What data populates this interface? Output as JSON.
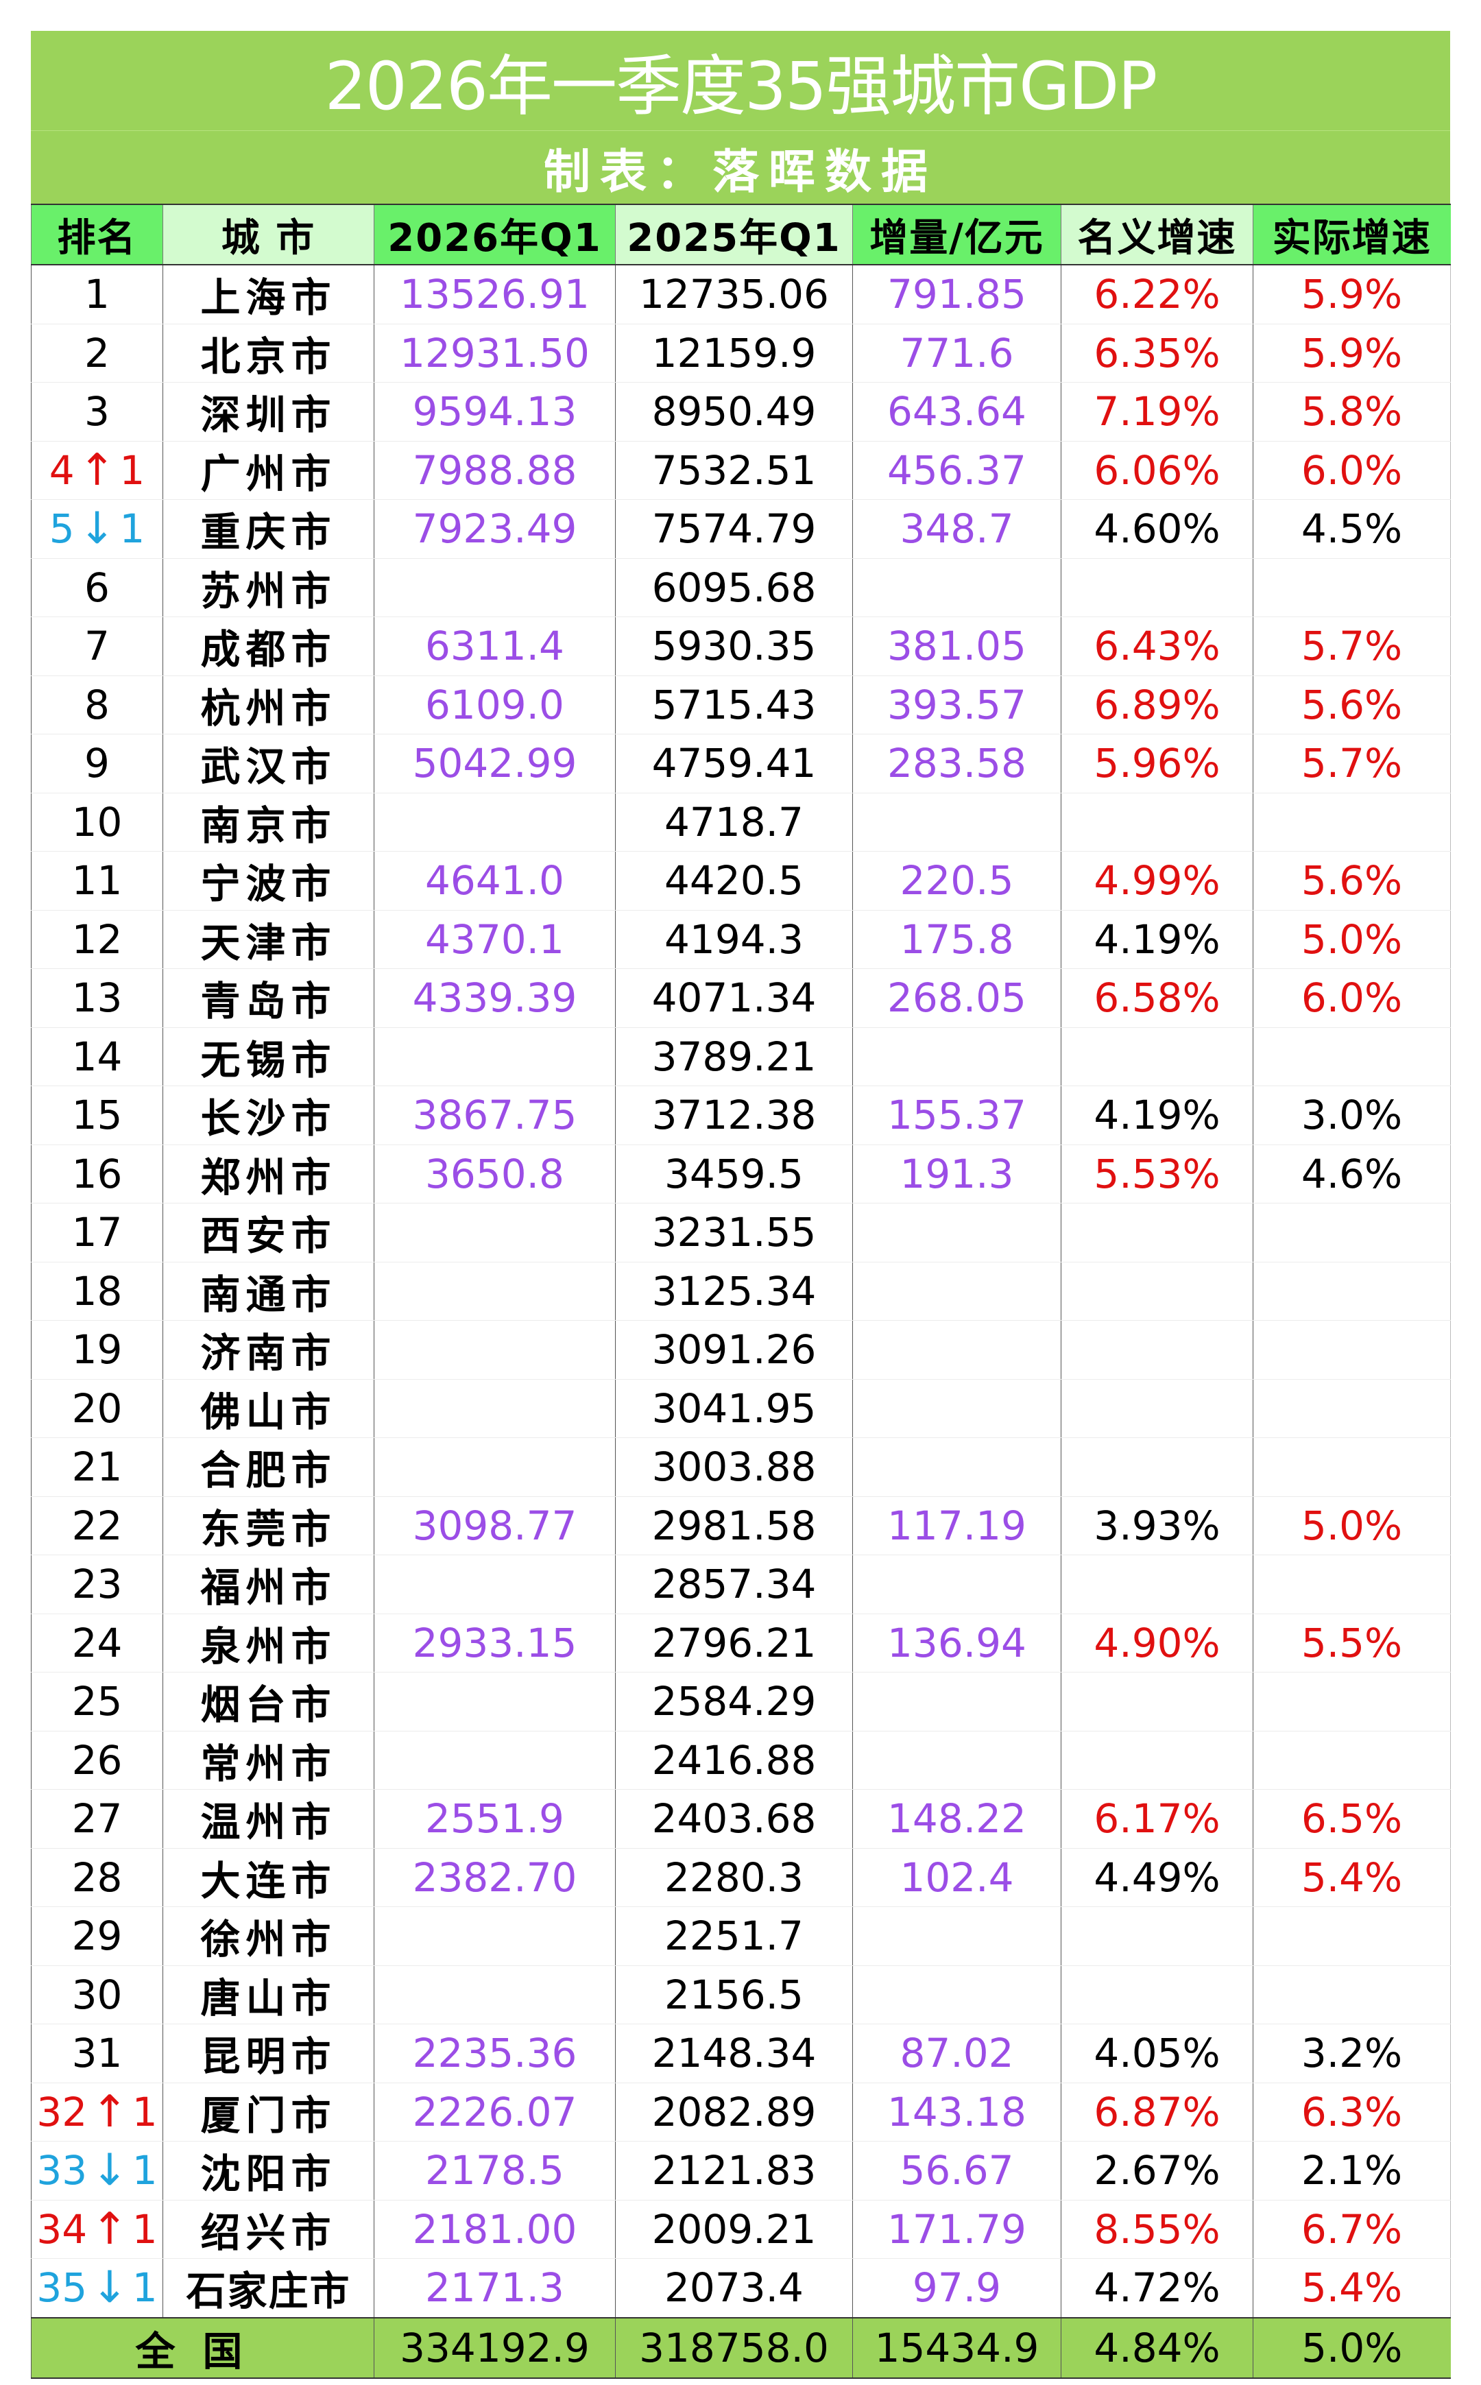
{
  "title": "2026年一季度35强城市GDP",
  "subtitle": "制表：落晖数据",
  "colors": {
    "band_green": "#9bd35a",
    "header_dark_green": "#69f06a",
    "header_light_green": "#d3fbcf",
    "value_purple": "#9b4de6",
    "growth_red": "#e01010",
    "rank_up_red": "#e01010",
    "rank_down_blue": "#1fa3dd"
  },
  "columns": [
    "排名",
    "城 市",
    "2026年Q1",
    "2025年Q1",
    "增量/亿元",
    "名义增速",
    "实际增速"
  ],
  "rows": [
    {
      "rank": "1",
      "change": "",
      "change_dir": "",
      "city": "上海市",
      "q1_2026": "13526.91",
      "q1_2025": "12735.06",
      "increase": "791.85",
      "nominal": "6.22%",
      "nominal_hl": true,
      "real": "5.9%",
      "real_hl": true
    },
    {
      "rank": "2",
      "change": "",
      "change_dir": "",
      "city": "北京市",
      "q1_2026": "12931.50",
      "q1_2025": "12159.9",
      "increase": "771.6",
      "nominal": "6.35%",
      "nominal_hl": true,
      "real": "5.9%",
      "real_hl": true
    },
    {
      "rank": "3",
      "change": "",
      "change_dir": "",
      "city": "深圳市",
      "q1_2026": "9594.13",
      "q1_2025": "8950.49",
      "increase": "643.64",
      "nominal": "7.19%",
      "nominal_hl": true,
      "real": "5.8%",
      "real_hl": true
    },
    {
      "rank": "4",
      "change": "1",
      "change_dir": "up",
      "city": "广州市",
      "q1_2026": "7988.88",
      "q1_2025": "7532.51",
      "increase": "456.37",
      "nominal": "6.06%",
      "nominal_hl": true,
      "real": "6.0%",
      "real_hl": true
    },
    {
      "rank": "5",
      "change": "1",
      "change_dir": "down",
      "city": "重庆市",
      "q1_2026": "7923.49",
      "q1_2025": "7574.79",
      "increase": "348.7",
      "nominal": "4.60%",
      "nominal_hl": false,
      "real": "4.5%",
      "real_hl": false
    },
    {
      "rank": "6",
      "change": "",
      "change_dir": "",
      "city": "苏州市",
      "q1_2026": "",
      "q1_2025": "6095.68",
      "increase": "",
      "nominal": "",
      "nominal_hl": false,
      "real": "",
      "real_hl": false
    },
    {
      "rank": "7",
      "change": "",
      "change_dir": "",
      "city": "成都市",
      "q1_2026": "6311.4",
      "q1_2025": "5930.35",
      "increase": "381.05",
      "nominal": "6.43%",
      "nominal_hl": true,
      "real": "5.7%",
      "real_hl": true
    },
    {
      "rank": "8",
      "change": "",
      "change_dir": "",
      "city": "杭州市",
      "q1_2026": "6109.0",
      "q1_2025": "5715.43",
      "increase": "393.57",
      "nominal": "6.89%",
      "nominal_hl": true,
      "real": "5.6%",
      "real_hl": true
    },
    {
      "rank": "9",
      "change": "",
      "change_dir": "",
      "city": "武汉市",
      "q1_2026": "5042.99",
      "q1_2025": "4759.41",
      "increase": "283.58",
      "nominal": "5.96%",
      "nominal_hl": true,
      "real": "5.7%",
      "real_hl": true
    },
    {
      "rank": "10",
      "change": "",
      "change_dir": "",
      "city": "南京市",
      "q1_2026": "",
      "q1_2025": "4718.7",
      "increase": "",
      "nominal": "",
      "nominal_hl": false,
      "real": "",
      "real_hl": false
    },
    {
      "rank": "11",
      "change": "",
      "change_dir": "",
      "city": "宁波市",
      "q1_2026": "4641.0",
      "q1_2025": "4420.5",
      "increase": "220.5",
      "nominal": "4.99%",
      "nominal_hl": true,
      "real": "5.6%",
      "real_hl": true
    },
    {
      "rank": "12",
      "change": "",
      "change_dir": "",
      "city": "天津市",
      "q1_2026": "4370.1",
      "q1_2025": "4194.3",
      "increase": "175.8",
      "nominal": "4.19%",
      "nominal_hl": false,
      "real": "5.0%",
      "real_hl": true
    },
    {
      "rank": "13",
      "change": "",
      "change_dir": "",
      "city": "青岛市",
      "q1_2026": "4339.39",
      "q1_2025": "4071.34",
      "increase": "268.05",
      "nominal": "6.58%",
      "nominal_hl": true,
      "real": "6.0%",
      "real_hl": true
    },
    {
      "rank": "14",
      "change": "",
      "change_dir": "",
      "city": "无锡市",
      "q1_2026": "",
      "q1_2025": "3789.21",
      "increase": "",
      "nominal": "",
      "nominal_hl": false,
      "real": "",
      "real_hl": false
    },
    {
      "rank": "15",
      "change": "",
      "change_dir": "",
      "city": "长沙市",
      "q1_2026": "3867.75",
      "q1_2025": "3712.38",
      "increase": "155.37",
      "nominal": "4.19%",
      "nominal_hl": false,
      "real": "3.0%",
      "real_hl": false
    },
    {
      "rank": "16",
      "change": "",
      "change_dir": "",
      "city": "郑州市",
      "q1_2026": "3650.8",
      "q1_2025": "3459.5",
      "increase": "191.3",
      "nominal": "5.53%",
      "nominal_hl": true,
      "real": "4.6%",
      "real_hl": false
    },
    {
      "rank": "17",
      "change": "",
      "change_dir": "",
      "city": "西安市",
      "q1_2026": "",
      "q1_2025": "3231.55",
      "increase": "",
      "nominal": "",
      "nominal_hl": false,
      "real": "",
      "real_hl": false
    },
    {
      "rank": "18",
      "change": "",
      "change_dir": "",
      "city": "南通市",
      "q1_2026": "",
      "q1_2025": "3125.34",
      "increase": "",
      "nominal": "",
      "nominal_hl": false,
      "real": "",
      "real_hl": false
    },
    {
      "rank": "19",
      "change": "",
      "change_dir": "",
      "city": "济南市",
      "q1_2026": "",
      "q1_2025": "3091.26",
      "increase": "",
      "nominal": "",
      "nominal_hl": false,
      "real": "",
      "real_hl": false
    },
    {
      "rank": "20",
      "change": "",
      "change_dir": "",
      "city": "佛山市",
      "q1_2026": "",
      "q1_2025": "3041.95",
      "increase": "",
      "nominal": "",
      "nominal_hl": false,
      "real": "",
      "real_hl": false
    },
    {
      "rank": "21",
      "change": "",
      "change_dir": "",
      "city": "合肥市",
      "q1_2026": "",
      "q1_2025": "3003.88",
      "increase": "",
      "nominal": "",
      "nominal_hl": false,
      "real": "",
      "real_hl": false
    },
    {
      "rank": "22",
      "change": "",
      "change_dir": "",
      "city": "东莞市",
      "q1_2026": "3098.77",
      "q1_2025": "2981.58",
      "increase": "117.19",
      "nominal": "3.93%",
      "nominal_hl": false,
      "real": "5.0%",
      "real_hl": true
    },
    {
      "rank": "23",
      "change": "",
      "change_dir": "",
      "city": "福州市",
      "q1_2026": "",
      "q1_2025": "2857.34",
      "increase": "",
      "nominal": "",
      "nominal_hl": false,
      "real": "",
      "real_hl": false
    },
    {
      "rank": "24",
      "change": "",
      "change_dir": "",
      "city": "泉州市",
      "q1_2026": "2933.15",
      "q1_2025": "2796.21",
      "increase": "136.94",
      "nominal": "4.90%",
      "nominal_hl": true,
      "real": "5.5%",
      "real_hl": true
    },
    {
      "rank": "25",
      "change": "",
      "change_dir": "",
      "city": "烟台市",
      "q1_2026": "",
      "q1_2025": "2584.29",
      "increase": "",
      "nominal": "",
      "nominal_hl": false,
      "real": "",
      "real_hl": false
    },
    {
      "rank": "26",
      "change": "",
      "change_dir": "",
      "city": "常州市",
      "q1_2026": "",
      "q1_2025": "2416.88",
      "increase": "",
      "nominal": "",
      "nominal_hl": false,
      "real": "",
      "real_hl": false
    },
    {
      "rank": "27",
      "change": "",
      "change_dir": "",
      "city": "温州市",
      "q1_2026": "2551.9",
      "q1_2025": "2403.68",
      "increase": "148.22",
      "nominal": "6.17%",
      "nominal_hl": true,
      "real": "6.5%",
      "real_hl": true
    },
    {
      "rank": "28",
      "change": "",
      "change_dir": "",
      "city": "大连市",
      "q1_2026": "2382.70",
      "q1_2025": "2280.3",
      "increase": "102.4",
      "nominal": "4.49%",
      "nominal_hl": false,
      "real": "5.4%",
      "real_hl": true
    },
    {
      "rank": "29",
      "change": "",
      "change_dir": "",
      "city": "徐州市",
      "q1_2026": "",
      "q1_2025": "2251.7",
      "increase": "",
      "nominal": "",
      "nominal_hl": false,
      "real": "",
      "real_hl": false
    },
    {
      "rank": "30",
      "change": "",
      "change_dir": "",
      "city": "唐山市",
      "q1_2026": "",
      "q1_2025": "2156.5",
      "increase": "",
      "nominal": "",
      "nominal_hl": false,
      "real": "",
      "real_hl": false
    },
    {
      "rank": "31",
      "change": "",
      "change_dir": "",
      "city": "昆明市",
      "q1_2026": "2235.36",
      "q1_2025": "2148.34",
      "increase": "87.02",
      "nominal": "4.05%",
      "nominal_hl": false,
      "real": "3.2%",
      "real_hl": false
    },
    {
      "rank": "32",
      "change": "1",
      "change_dir": "up",
      "city": "厦门市",
      "q1_2026": "2226.07",
      "q1_2025": "2082.89",
      "increase": "143.18",
      "nominal": "6.87%",
      "nominal_hl": true,
      "real": "6.3%",
      "real_hl": true
    },
    {
      "rank": "33",
      "change": "1",
      "change_dir": "down",
      "city": "沈阳市",
      "q1_2026": "2178.5",
      "q1_2025": "2121.83",
      "increase": "56.67",
      "nominal": "2.67%",
      "nominal_hl": false,
      "real": "2.1%",
      "real_hl": false
    },
    {
      "rank": "34",
      "change": "1",
      "change_dir": "up",
      "city": "绍兴市",
      "q1_2026": "2181.00",
      "q1_2025": "2009.21",
      "increase": "171.79",
      "nominal": "8.55%",
      "nominal_hl": true,
      "real": "6.7%",
      "real_hl": true
    },
    {
      "rank": "35",
      "change": "1",
      "change_dir": "down",
      "city": "石家庄市",
      "q1_2026": "2171.3",
      "q1_2025": "2073.4",
      "increase": "97.9",
      "nominal": "4.72%",
      "nominal_hl": false,
      "real": "5.4%",
      "real_hl": true
    }
  ],
  "total": {
    "label": "全国",
    "q1_2026": "334192.9",
    "q1_2025": "318758.0",
    "increase": "15434.9",
    "nominal": "4.84%",
    "real": "5.0%"
  },
  "icons": {
    "up": "↑",
    "down": "↓"
  }
}
